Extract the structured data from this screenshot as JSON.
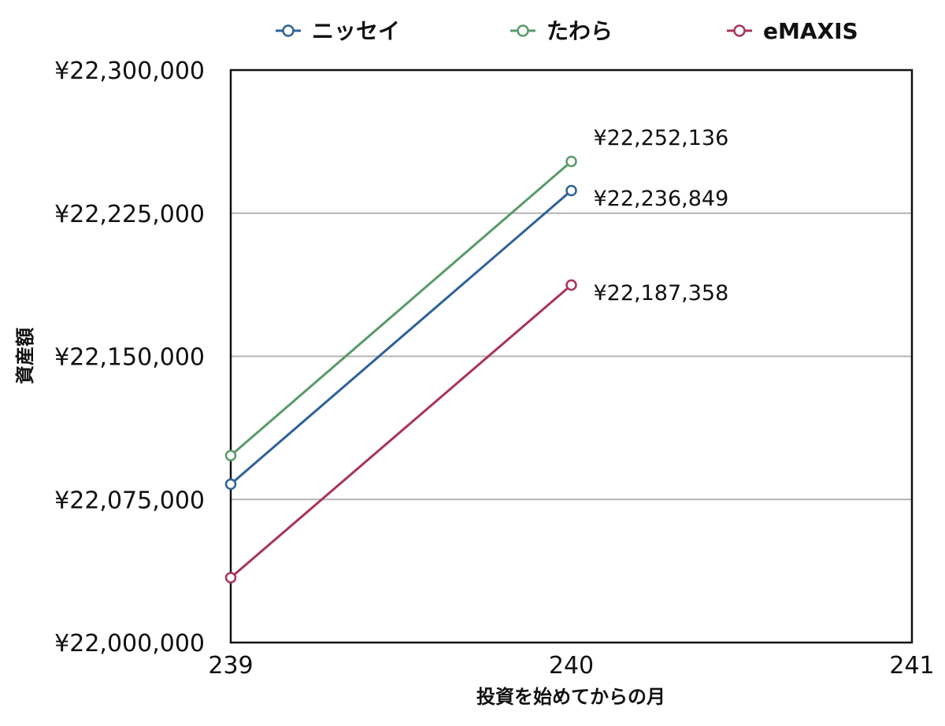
{
  "chart_data": {
    "type": "line",
    "title": "",
    "xlabel": "投資を始めてからの月",
    "ylabel": "資産額",
    "x": [
      239,
      240
    ],
    "xlim": [
      239,
      241
    ],
    "xticks": [
      "239",
      "240",
      "241"
    ],
    "ylim": [
      22000000,
      22300000
    ],
    "yticks": [
      "¥22,000,000",
      "¥22,075,000",
      "¥22,150,000",
      "¥22,225,000",
      "¥22,300,000"
    ],
    "grid": "horizontal",
    "legend": "top",
    "series": [
      {
        "name": "ニッセイ",
        "color": "#2e6296",
        "values": [
          22083000,
          22236849
        ],
        "labels": [
          "",
          "¥22,236,849"
        ]
      },
      {
        "name": "たわら",
        "color": "#5a9a6a",
        "values": [
          22098000,
          22252136
        ],
        "labels": [
          "",
          "¥22,252,136"
        ]
      },
      {
        "name": "eMAXIS",
        "color": "#a8345e",
        "values": [
          22034000,
          22187358
        ],
        "labels": [
          "",
          "¥22,187,358"
        ]
      }
    ]
  }
}
